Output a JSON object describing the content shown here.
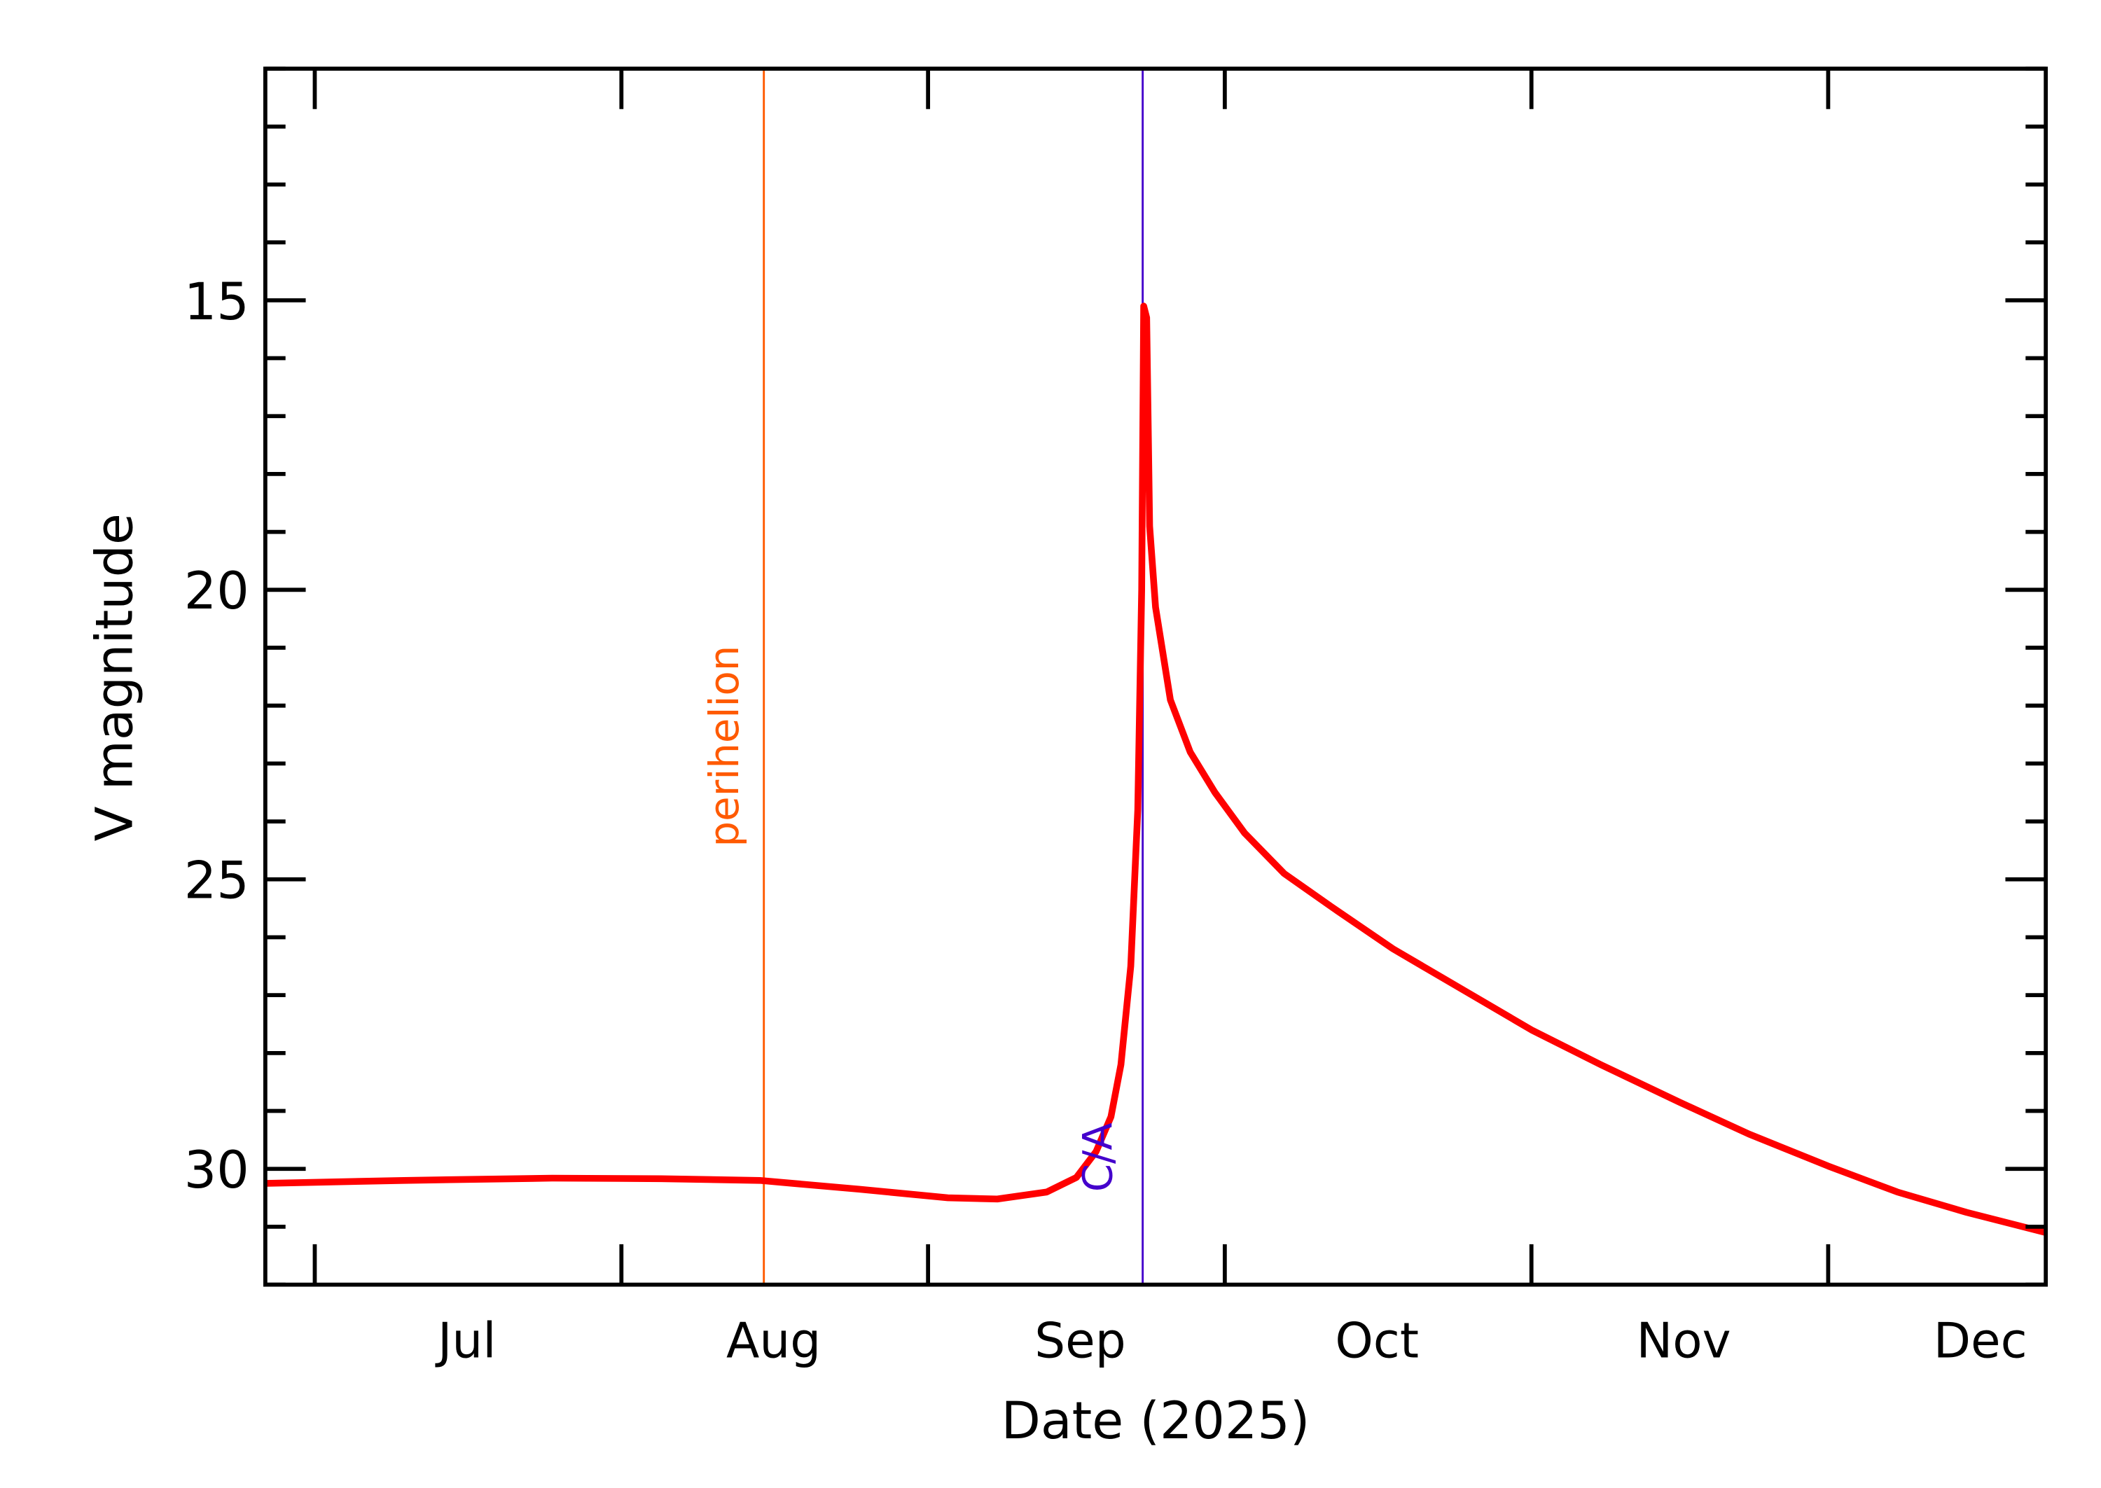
{
  "chart_data": {
    "type": "line",
    "title": "",
    "xlabel": "Date (2025)",
    "ylabel": "V magnitude",
    "xlim": [
      "2025-06-26",
      "2025-12-23"
    ],
    "ylim": [
      32,
      11
    ],
    "y_inverted": true,
    "grid": false,
    "x_ticks": [
      {
        "date": "2025-07-01",
        "label": "Jul"
      },
      {
        "date": "2025-08-01",
        "label": "Aug"
      },
      {
        "date": "2025-09-01",
        "label": "Sep"
      },
      {
        "date": "2025-10-01",
        "label": "Oct"
      },
      {
        "date": "2025-11-01",
        "label": "Nov"
      },
      {
        "date": "2025-12-01",
        "label": "Dec"
      }
    ],
    "y_ticks": [
      15,
      20,
      25,
      30
    ],
    "y_minor_step": 1,
    "series": [
      {
        "color": "#ff0000",
        "points": [
          [
            "2025-06-26",
            30.25
          ],
          [
            "2025-07-10",
            30.2
          ],
          [
            "2025-07-25",
            30.16
          ],
          [
            "2025-08-05",
            30.17
          ],
          [
            "2025-08-15",
            30.2
          ],
          [
            "2025-08-25",
            30.35
          ],
          [
            "2025-09-03",
            30.5
          ],
          [
            "2025-09-08",
            30.52
          ],
          [
            "2025-09-13",
            30.4
          ],
          [
            "2025-09-16",
            30.15
          ],
          [
            "2025-09-18",
            29.7
          ],
          [
            "2025-09-19.5",
            29.1
          ],
          [
            "2025-09-20.5",
            28.2
          ],
          [
            "2025-09-21.5",
            26.5
          ],
          [
            "2025-09-22.2",
            23.8
          ],
          [
            "2025-09-22.6",
            20.0
          ],
          [
            "2025-09-22.8",
            15.1
          ],
          [
            "2025-09-23.1",
            15.3
          ],
          [
            "2025-09-23.4",
            18.9
          ],
          [
            "2025-09-24",
            20.3
          ],
          [
            "2025-09-25.5",
            21.9
          ],
          [
            "2025-09-27.5",
            22.8
          ],
          [
            "2025-09-30",
            23.5
          ],
          [
            "2025-10-03",
            24.2
          ],
          [
            "2025-10-07",
            24.9
          ],
          [
            "2025-10-12",
            25.5
          ],
          [
            "2025-10-18",
            26.2
          ],
          [
            "2025-10-25",
            26.9
          ],
          [
            "2025-11-01",
            27.6
          ],
          [
            "2025-11-08",
            28.2
          ],
          [
            "2025-11-16",
            28.85
          ],
          [
            "2025-11-23",
            29.4
          ],
          [
            "2025-12-01",
            29.95
          ],
          [
            "2025-12-08",
            30.4
          ],
          [
            "2025-12-15",
            30.75
          ],
          [
            "2025-12-23",
            31.1
          ]
        ]
      }
    ],
    "annotations": [
      {
        "label": "perihelion",
        "date": "2025-08-15.4",
        "color": "#ff5a00"
      },
      {
        "label": "C/A",
        "date": "2025-09-22.7",
        "color": "#4400cc"
      }
    ]
  }
}
